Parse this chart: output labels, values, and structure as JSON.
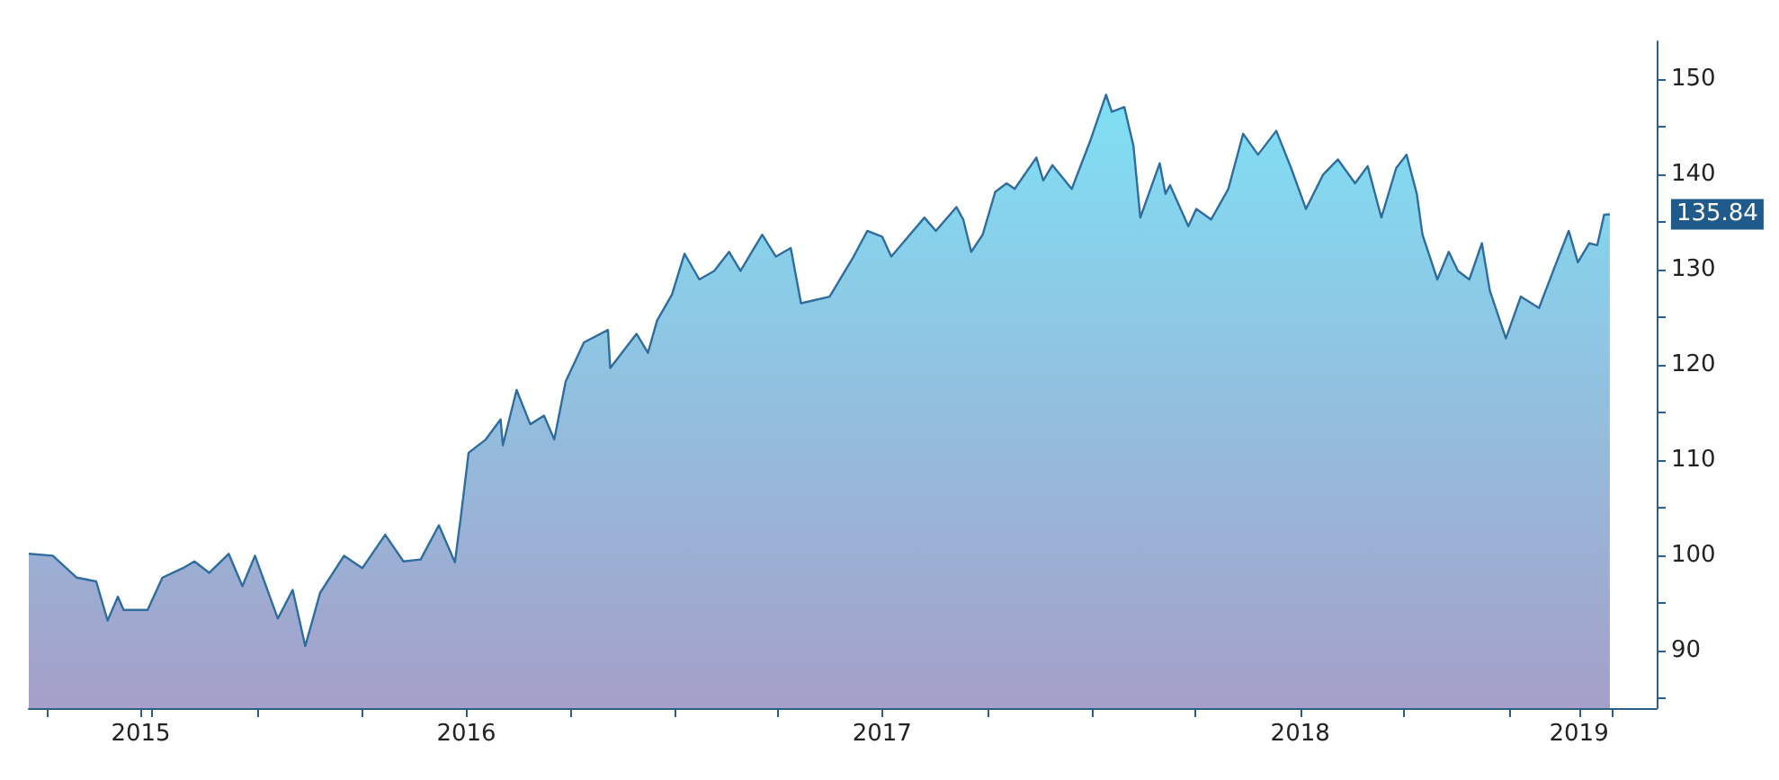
{
  "chart_data": {
    "type": "area",
    "x": [
      "2015-06-15",
      "2015-07-06",
      "2015-07-27",
      "2015-08-13",
      "2015-08-23",
      "2015-09-01",
      "2015-09-06",
      "2015-09-27",
      "2015-10-10",
      "2015-10-28",
      "2015-11-07",
      "2015-11-20",
      "2015-12-07",
      "2015-12-19",
      "2015-12-30",
      "2016-01-19",
      "2016-02-01",
      "2016-02-12",
      "2016-02-25",
      "2016-03-17",
      "2016-04-02",
      "2016-04-22",
      "2016-05-08",
      "2016-05-23",
      "2016-06-08",
      "2016-06-22",
      "2016-06-27",
      "2016-07-04",
      "2016-07-19",
      "2016-08-01",
      "2016-08-03",
      "2016-08-15",
      "2016-08-27",
      "2016-09-08",
      "2016-09-17",
      "2016-09-27",
      "2016-10-13",
      "2016-11-03",
      "2016-11-05",
      "2016-11-28",
      "2016-12-08",
      "2016-12-16",
      "2016-12-29",
      "2017-01-09",
      "2017-01-22",
      "2017-02-04",
      "2017-02-17",
      "2017-02-27",
      "2017-03-18",
      "2017-03-30",
      "2017-04-12",
      "2017-04-21",
      "2017-05-16",
      "2017-06-06",
      "2017-06-18",
      "2017-07-01",
      "2017-07-09",
      "2017-08-07",
      "2017-08-17",
      "2017-09-04",
      "2017-09-10",
      "2017-09-17",
      "2017-09-27",
      "2017-10-08",
      "2017-10-18",
      "2017-10-25",
      "2017-11-13",
      "2017-11-19",
      "2017-11-27",
      "2017-12-14",
      "2017-12-30",
      "2018-01-13",
      "2018-01-18",
      "2018-01-29",
      "2018-02-06",
      "2018-02-12",
      "2018-03-01",
      "2018-03-06",
      "2018-03-10",
      "2018-03-26",
      "2018-04-02",
      "2018-04-15",
      "2018-04-30",
      "2018-05-13",
      "2018-05-26",
      "2018-06-11",
      "2018-06-24",
      "2018-07-07",
      "2018-07-22",
      "2018-08-04",
      "2018-08-19",
      "2018-08-30",
      "2018-09-11",
      "2018-09-24",
      "2018-10-03",
      "2018-10-12",
      "2018-10-17",
      "2018-10-30",
      "2018-11-09",
      "2018-11-17",
      "2018-11-27",
      "2018-12-08",
      "2018-12-15",
      "2018-12-29",
      "2019-01-11",
      "2019-01-27",
      "2019-02-09",
      "2019-02-22",
      "2019-03-02",
      "2019-03-12",
      "2019-03-19",
      "2019-03-25",
      "2019-03-30"
    ],
    "series": [
      {
        "color": "#2f6d9e",
        "values": [
          100.2,
          100.0,
          97.7,
          97.3,
          93.2,
          95.7,
          94.3,
          94.3,
          97.7,
          98.7,
          99.4,
          98.2,
          100.2,
          96.8,
          100.0,
          93.4,
          96.4,
          90.5,
          96.1,
          100.0,
          98.7,
          102.2,
          99.4,
          99.6,
          103.2,
          99.3,
          103.9,
          110.8,
          112.2,
          114.3,
          111.6,
          117.4,
          113.8,
          114.7,
          112.2,
          118.3,
          122.4,
          123.7,
          119.7,
          123.3,
          121.3,
          124.7,
          127.4,
          131.7,
          129.0,
          129.9,
          131.9,
          129.9,
          133.7,
          131.4,
          132.3,
          126.5,
          127.2,
          131.4,
          134.1,
          133.5,
          131.4,
          135.5,
          134.1,
          136.6,
          135.3,
          131.9,
          133.7,
          138.2,
          139.1,
          138.5,
          141.8,
          139.4,
          141.0,
          138.5,
          143.5,
          148.4,
          146.6,
          147.1,
          143.0,
          135.5,
          141.2,
          138.0,
          138.9,
          134.6,
          136.4,
          135.3,
          138.5,
          144.3,
          142.1,
          144.6,
          140.7,
          136.4,
          140.0,
          141.6,
          139.1,
          140.9,
          135.5,
          140.7,
          142.1,
          138.0,
          133.7,
          129.0,
          131.9,
          129.9,
          129.0,
          132.8,
          127.8,
          122.8,
          127.2,
          126.0,
          130.1,
          134.1,
          130.8,
          132.8,
          132.6,
          135.8,
          135.84
        ]
      }
    ],
    "xlim": [
      "2015-06-15",
      "2019-05-10"
    ],
    "xticks": [
      {
        "value": "2015-07-01",
        "label": null
      },
      {
        "value": "2015-09-21",
        "label": "2015"
      },
      {
        "value": "2015-10-01",
        "label": null
      },
      {
        "value": "2016-01-01",
        "label": null
      },
      {
        "value": "2016-04-01",
        "label": null
      },
      {
        "value": "2016-07-02",
        "label": "2016"
      },
      {
        "value": "2016-10-01",
        "label": null
      },
      {
        "value": "2017-01-01",
        "label": null
      },
      {
        "value": "2017-04-01",
        "label": null
      },
      {
        "value": "2017-07-01",
        "label": "2017"
      },
      {
        "value": "2017-10-01",
        "label": null
      },
      {
        "value": "2018-01-01",
        "label": null
      },
      {
        "value": "2018-04-01",
        "label": null
      },
      {
        "value": "2018-07-02",
        "label": "2018"
      },
      {
        "value": "2018-10-01",
        "label": null
      },
      {
        "value": "2019-01-01",
        "label": null
      },
      {
        "value": "2019-03-03",
        "label": "2019"
      },
      {
        "value": "2019-04-01",
        "label": null
      }
    ],
    "ylim": [
      84,
      154
    ],
    "yticks": [
      {
        "value": 85,
        "label": null
      },
      90,
      {
        "value": 95,
        "label": null
      },
      100,
      {
        "value": 105,
        "label": null
      },
      110,
      {
        "value": 115,
        "label": null
      },
      120,
      {
        "value": 125,
        "label": null
      },
      130,
      {
        "value": 135,
        "label": null
      },
      140,
      {
        "value": 145,
        "label": null
      },
      150
    ],
    "annotations": [
      {
        "text": "135.84",
        "x": "2019-03-30",
        "y": 135.84
      }
    ]
  }
}
